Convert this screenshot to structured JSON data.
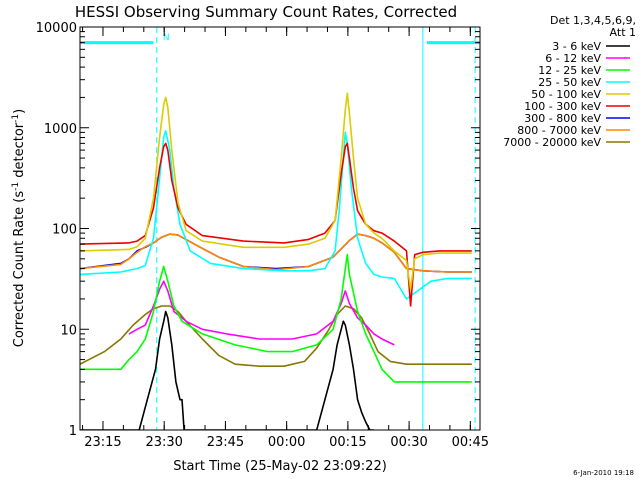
{
  "chart_data": {
    "type": "line",
    "title": "HESSI Observing Summary Count Rates, Corrected",
    "xlabel": "Start Time (25-May-02 23:09:22)",
    "ylabel_main": "Corrected Count Rate (s",
    "ylabel_sup1": "-1",
    "ylabel_mid": " detector",
    "ylabel_sup2": "-1",
    "ylabel_end": ")",
    "y_scale": "log",
    "ylim": [
      1,
      10000
    ],
    "y_ticks": [
      {
        "value": 1,
        "label": "1"
      },
      {
        "value": 10,
        "label": "10"
      },
      {
        "value": 100,
        "label": "100"
      },
      {
        "value": 1000,
        "label": "1000"
      },
      {
        "value": 10000,
        "label": "10000"
      }
    ],
    "x_unit": "minutes after 23:09:22",
    "xlim": [
      0,
      98
    ],
    "x_ticks": [
      {
        "value": 5.63,
        "label": "23:15"
      },
      {
        "value": 20.63,
        "label": "23:30"
      },
      {
        "value": 35.63,
        "label": "23:45"
      },
      {
        "value": 50.63,
        "label": "00:00"
      },
      {
        "value": 65.63,
        "label": "00:15"
      },
      {
        "value": 80.63,
        "label": "00:30"
      },
      {
        "value": 95.63,
        "label": "00:45"
      }
    ],
    "legend_header": [
      "Det 1,3,4,5,6,9,",
      "Att 1"
    ],
    "legend_placement": "right",
    "series": [
      {
        "name": "3 - 6 keV",
        "color": "#000000",
        "x": [
          0,
          14.5,
          16.5,
          18.5,
          19.5,
          20.5,
          21.0,
          21.5,
          22.5,
          23.5,
          24.5,
          25.0,
          25.5,
          58.0,
          60.0,
          62.0,
          63.0,
          64.0,
          64.5,
          65.0,
          66.0,
          67.0,
          68.0,
          69.0,
          70.0,
          71.0,
          72.0
        ],
        "y": [
          1,
          1,
          2,
          4,
          8,
          12,
          15,
          13,
          7,
          3,
          2,
          2,
          1,
          1,
          2,
          4,
          7,
          10,
          12,
          11,
          7,
          4,
          2,
          1.5,
          1.2,
          1,
          1
        ]
      },
      {
        "name": "6 - 12 keV",
        "color": "#ff00ff",
        "x": [
          12.0,
          14.0,
          16.0,
          18.0,
          19.5,
          20.5,
          21.5,
          23.0,
          26.0,
          30.0,
          36.0,
          44.0,
          52.0,
          58.0,
          62.0,
          64.0,
          65.0,
          66.0,
          68.0,
          70.0,
          72.0,
          74.0,
          77.0
        ],
        "y": [
          9,
          10,
          11,
          17,
          25,
          30,
          24,
          15,
          12,
          10,
          9,
          8,
          8,
          9,
          12,
          18,
          24,
          18,
          13,
          11,
          9,
          8,
          7
        ]
      },
      {
        "name": "12 - 25 keV",
        "color": "#00ff00",
        "x": [
          0,
          10.0,
          12.0,
          14.0,
          16.0,
          18.0,
          19.5,
          20.5,
          21.5,
          23.0,
          25.0,
          30.0,
          38.0,
          46.0,
          52.0,
          58.0,
          62.0,
          64.0,
          65.0,
          65.5,
          66.0,
          68.0,
          70.0,
          72.0,
          74.0,
          77.0,
          80.0,
          85.0,
          90.0,
          96.0
        ],
        "y": [
          4,
          4,
          5,
          6,
          8,
          15,
          30,
          42,
          30,
          17,
          12,
          9,
          7,
          6,
          6,
          7,
          10,
          20,
          40,
          55,
          35,
          15,
          9,
          6,
          4,
          3,
          3,
          3,
          3,
          3
        ]
      },
      {
        "name": "25 - 50 keV",
        "color": "#00ffff",
        "x": [
          0,
          10.0,
          14.0,
          16.0,
          18.0,
          19.0,
          20.0,
          20.5,
          21.0,
          22.0,
          23.0,
          24.5,
          27.0,
          32.0,
          40.0,
          50.0,
          56.0,
          60.0,
          62.5,
          63.5,
          64.5,
          65.0,
          65.5,
          66.5,
          68.0,
          70.0,
          72.0,
          74.0,
          77.0,
          80.0,
          86.0,
          90.0,
          96.0
        ],
        "y": [
          35,
          37,
          40,
          43,
          80,
          200,
          500,
          800,
          930,
          600,
          250,
          110,
          60,
          45,
          40,
          38,
          38,
          40,
          60,
          150,
          500,
          900,
          700,
          250,
          80,
          45,
          35,
          33,
          32,
          20,
          30,
          32,
          32
        ]
      },
      {
        "name": "50 - 100 keV",
        "color": "#ddcc00",
        "x": [
          0,
          12.0,
          14.0,
          16.0,
          18.0,
          19.5,
          20.5,
          21.0,
          21.5,
          22.5,
          24.0,
          26.0,
          30.0,
          40.0,
          50.0,
          56.0,
          60.0,
          62.5,
          64.0,
          65.0,
          65.5,
          66.0,
          67.0,
          68.0,
          70.0,
          72.0,
          74.0,
          77.0,
          80.0,
          81.0,
          82.0,
          84.0,
          88.0,
          96.0
        ],
        "y": [
          60,
          62,
          66,
          80,
          200,
          800,
          1700,
          2000,
          1600,
          600,
          180,
          95,
          75,
          65,
          65,
          70,
          80,
          120,
          500,
          1500,
          2200,
          1400,
          500,
          200,
          110,
          90,
          80,
          60,
          48,
          25,
          50,
          55,
          57,
          57
        ]
      },
      {
        "name": "100 - 300 keV",
        "color": "#ee0000",
        "x": [
          0,
          12.0,
          14.0,
          16.0,
          18.0,
          19.5,
          20.5,
          21.0,
          21.5,
          22.5,
          24.0,
          26.0,
          30.0,
          40.0,
          50.0,
          56.0,
          60.0,
          62.5,
          64.0,
          65.0,
          65.5,
          66.0,
          67.0,
          68.0,
          70.0,
          72.0,
          74.0,
          77.0,
          80.0,
          81.0,
          82.0,
          84.0,
          88.0,
          96.0
        ],
        "y": [
          70,
          72,
          75,
          85,
          160,
          400,
          650,
          700,
          600,
          300,
          160,
          110,
          85,
          75,
          72,
          78,
          90,
          120,
          350,
          650,
          700,
          500,
          250,
          150,
          110,
          95,
          90,
          75,
          60,
          17,
          55,
          58,
          60,
          60
        ]
      },
      {
        "name": "300 - 800 keV",
        "color": "#0000ff",
        "x": [
          0,
          10.0,
          12.0,
          14.0,
          16.0,
          18.0,
          20.0,
          22.0,
          24.0,
          28.0,
          34.0,
          40.0,
          48.0,
          56.0,
          62.0,
          66.0,
          68.0,
          70.0,
          72.0,
          74.0,
          77.0,
          80.0,
          84.0,
          90.0,
          96.0
        ],
        "y": [
          40,
          45,
          50,
          60,
          65,
          72,
          82,
          88,
          86,
          70,
          52,
          42,
          40,
          42,
          52,
          76,
          88,
          85,
          80,
          72,
          58,
          40,
          38,
          37,
          37
        ]
      },
      {
        "name": "800 - 7000 keV",
        "color": "#ff8800",
        "x": [
          0,
          10.0,
          12.0,
          14.0,
          16.0,
          18.0,
          20.0,
          22.0,
          24.0,
          28.0,
          34.0,
          40.0,
          48.0,
          56.0,
          62.0,
          66.0,
          68.0,
          70.0,
          72.0,
          74.0,
          77.0,
          80.0,
          84.0,
          90.0,
          96.0
        ],
        "y": [
          40,
          44,
          50,
          58,
          66,
          72,
          82,
          88,
          86,
          70,
          52,
          42,
          39,
          42,
          52,
          76,
          88,
          85,
          80,
          72,
          58,
          40,
          38,
          37,
          37
        ]
      },
      {
        "name": "7000 - 20000 keV",
        "color": "#887700",
        "x": [
          0,
          6.0,
          10.0,
          13.0,
          16.0,
          18.0,
          20.0,
          22.0,
          24.0,
          26.0,
          30.0,
          34.0,
          38.0,
          44.0,
          50.0,
          55.0,
          58.0,
          61.0,
          63.0,
          65.0,
          67.0,
          69.0,
          71.0,
          73.0,
          76.0,
          80.0,
          85.0,
          90.0,
          96.0
        ],
        "y": [
          4.5,
          6,
          8,
          11,
          14,
          16,
          17,
          17,
          15,
          12,
          8,
          5.5,
          4.5,
          4.3,
          4.3,
          4.8,
          6.5,
          10,
          14,
          17,
          16,
          13,
          9,
          6,
          4.8,
          4.5,
          4.5,
          4.5,
          4.5
        ]
      }
    ],
    "annotations": [
      {
        "type": "attenuator-segment",
        "color": "#00ffff",
        "x1": 0,
        "x2": 18,
        "y": 7000
      },
      {
        "type": "attenuator-segment",
        "color": "#00ffff",
        "x1": 85,
        "x2": 98,
        "y": 7000
      },
      {
        "type": "label",
        "text": "N",
        "color": "#00ffff",
        "x": 20.3,
        "y": 7400
      },
      {
        "type": "vline-dashed",
        "color": "#00ffff",
        "x": 18.8
      },
      {
        "type": "vline-dashed",
        "color": "#00ffff",
        "x": 96.8
      },
      {
        "type": "vline-solid",
        "color": "#00ffff",
        "x": 84.0
      }
    ],
    "grid": false,
    "timestamp": "6-Jan-2010 19:18"
  }
}
